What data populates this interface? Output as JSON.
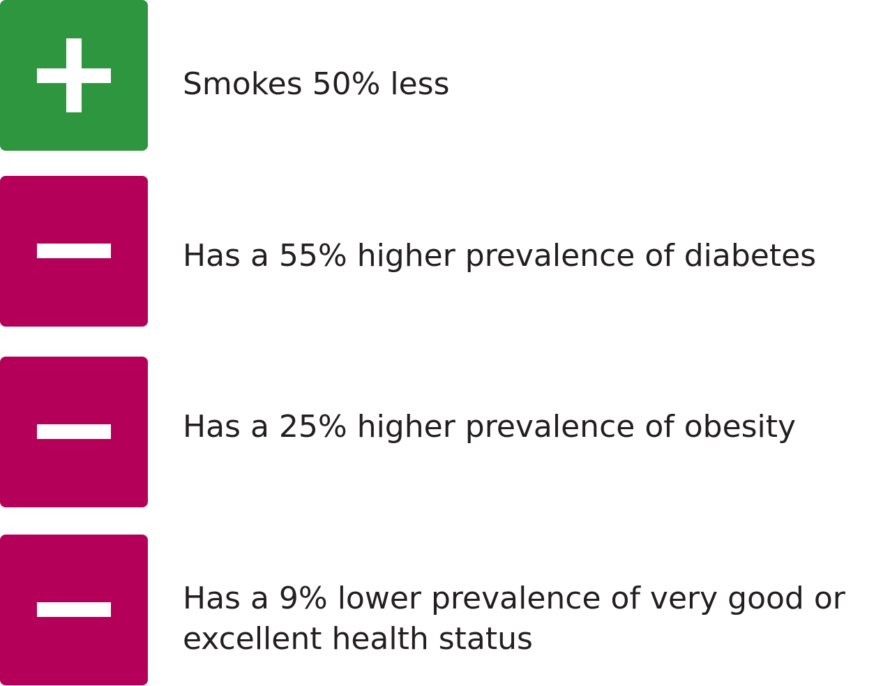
{
  "colors": {
    "positive": "#2e963e",
    "negative": "#b5005a",
    "symbol": "#ffffff",
    "text": "#231f20"
  },
  "items": [
    {
      "sign": "plus",
      "icon": "plus-icon",
      "text": "Smokes 50% less"
    },
    {
      "sign": "minus",
      "icon": "minus-icon",
      "text": "Has a 55% higher prevalence of diabetes"
    },
    {
      "sign": "minus",
      "icon": "minus-icon",
      "text": "Has a 25% higher prevalence of obesity"
    },
    {
      "sign": "minus",
      "icon": "minus-icon",
      "text": "Has a 9% lower prevalence of very good or",
      "text_line2": "excellent health status"
    }
  ]
}
